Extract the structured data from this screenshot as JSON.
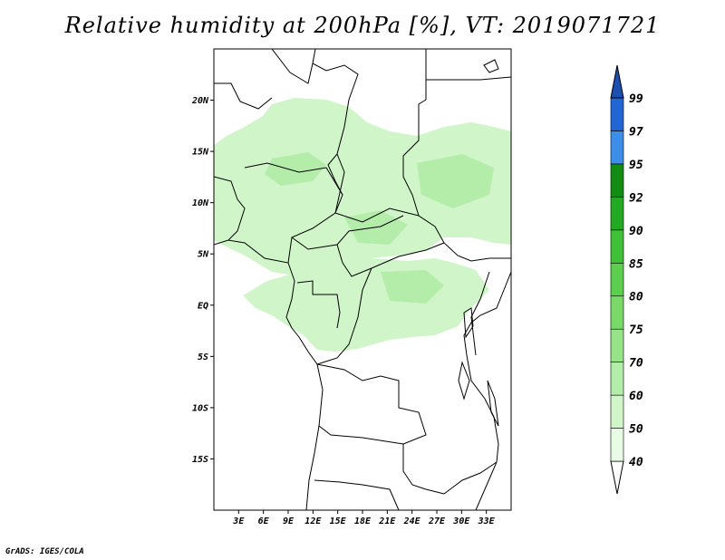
{
  "title": "Relative humidity at 200hPa [%], VT: 2019071721",
  "credit": "GrADS: IGES/COLA",
  "map": {
    "lon_range": [
      0,
      36
    ],
    "lat_range": [
      -20,
      25
    ],
    "lon_ticks": [
      {
        "value": 3,
        "label": "3E"
      },
      {
        "value": 6,
        "label": "6E"
      },
      {
        "value": 9,
        "label": "9E"
      },
      {
        "value": 12,
        "label": "12E"
      },
      {
        "value": 15,
        "label": "15E"
      },
      {
        "value": 18,
        "label": "18E"
      },
      {
        "value": 21,
        "label": "21E"
      },
      {
        "value": 24,
        "label": "24E"
      },
      {
        "value": 27,
        "label": "27E"
      },
      {
        "value": 30,
        "label": "30E"
      },
      {
        "value": 33,
        "label": "33E"
      }
    ],
    "lat_ticks": [
      {
        "value": 20,
        "label": "20N"
      },
      {
        "value": 15,
        "label": "15N"
      },
      {
        "value": 10,
        "label": "10N"
      },
      {
        "value": 5,
        "label": "5N"
      },
      {
        "value": 0,
        "label": "EQ"
      },
      {
        "value": -5,
        "label": "5S"
      },
      {
        "value": -10,
        "label": "10S"
      },
      {
        "value": -15,
        "label": "15S"
      }
    ]
  },
  "colorbar": {
    "levels": [
      "40",
      "50",
      "60",
      "70",
      "75",
      "80",
      "85",
      "90",
      "92",
      "95",
      "97",
      "99"
    ],
    "colors": [
      "#e8fbe4",
      "#d0f5c9",
      "#b4edaa",
      "#96e388",
      "#79da6a",
      "#5ccf4e",
      "#3fc238",
      "#23aa23",
      "#138c13",
      "#3c8ee8",
      "#2266d6",
      "#1c4fb0"
    ]
  }
}
